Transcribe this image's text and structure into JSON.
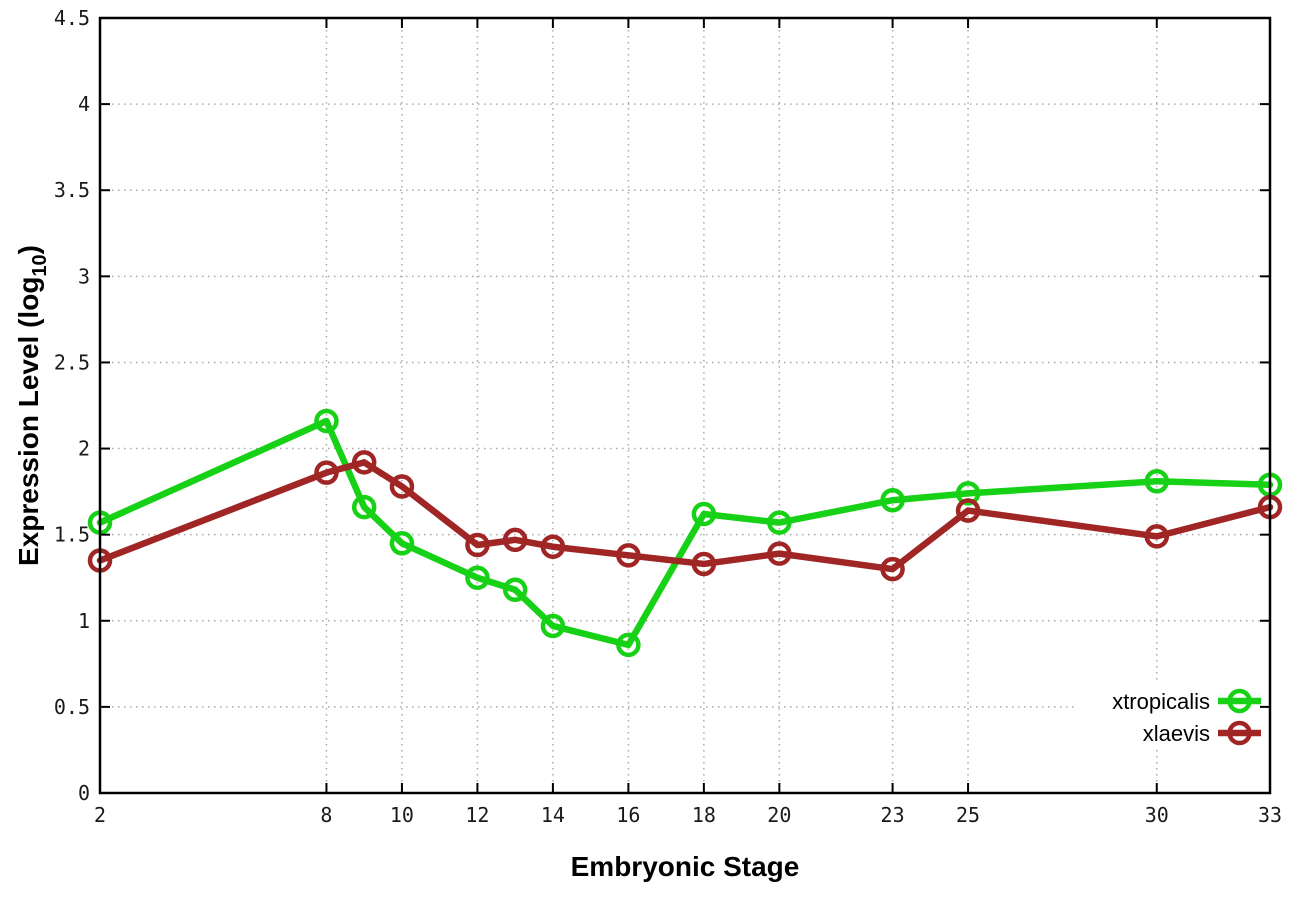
{
  "figure": {
    "background_color": "#ffffff",
    "border_color": "#000000",
    "grid_color": "#aaaaaa",
    "tick_label_color": "#1a1a1a"
  },
  "chart_data": {
    "type": "line",
    "title": "",
    "xlabel": "Embryonic Stage",
    "ylabel_main": "Expression Level (log",
    "ylabel_sub": "10",
    "ylabel_close": ")",
    "x": [
      2,
      8,
      9,
      10,
      12,
      13,
      14,
      16,
      18,
      20,
      23,
      25,
      30,
      33
    ],
    "series": [
      {
        "name": "xtropicalis",
        "color": "#16d116",
        "marker": "open-circle",
        "values": [
          1.57,
          2.16,
          1.66,
          1.45,
          1.25,
          1.18,
          0.97,
          0.86,
          1.62,
          1.57,
          1.7,
          1.74,
          1.81,
          1.79
        ]
      },
      {
        "name": "xlaevis",
        "color": "#a02626",
        "marker": "open-circle",
        "values": [
          1.35,
          1.86,
          1.92,
          1.78,
          1.44,
          1.47,
          1.43,
          1.38,
          1.33,
          1.39,
          1.3,
          1.64,
          1.49,
          1.66
        ]
      }
    ],
    "xlim": [
      2,
      33
    ],
    "ylim": [
      0,
      4.5
    ],
    "xticks": [
      2,
      8,
      10,
      12,
      14,
      16,
      18,
      20,
      23,
      25,
      30,
      33
    ],
    "yticks": [
      0,
      0.5,
      1,
      1.5,
      2,
      2.5,
      3,
      3.5,
      4,
      4.5
    ],
    "ytick_labels": [
      "0",
      "0.5",
      "1",
      "1.5",
      "2",
      "2.5",
      "3",
      "3.5",
      "4",
      "4.5"
    ],
    "grid": true,
    "grid_style": "dotted",
    "legend_position": "bottom-right",
    "legend_entries": [
      "xtropicalis",
      "xlaevis"
    ]
  }
}
